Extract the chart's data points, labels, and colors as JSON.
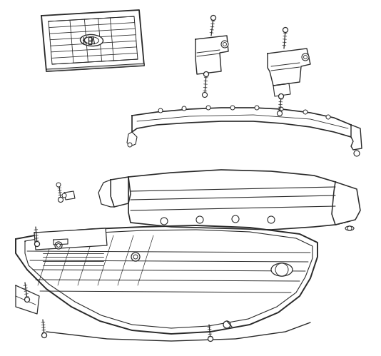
{
  "bg_color": "#ffffff",
  "line_color": "#2a2a2a",
  "fig_width": 5.34,
  "fig_height": 4.99,
  "dpi": 100
}
